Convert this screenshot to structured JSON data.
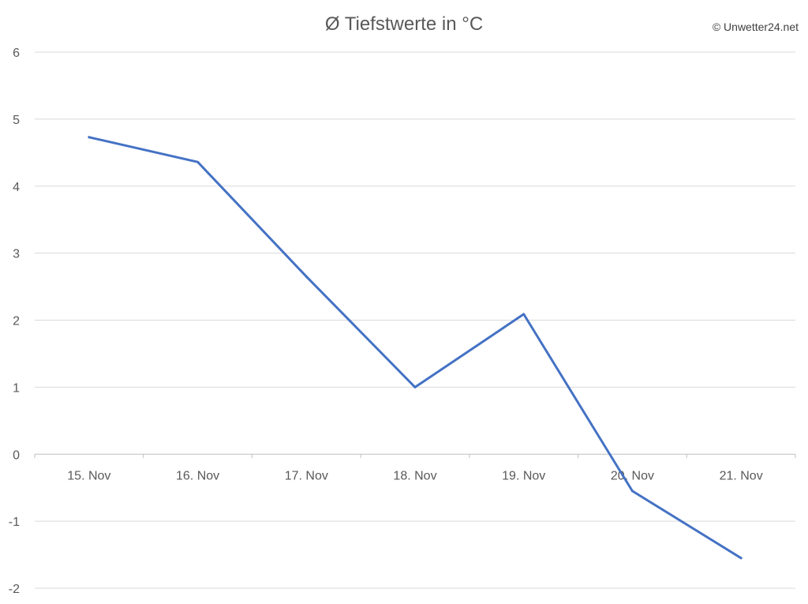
{
  "credit": "© Unwetter24.net",
  "colors": {
    "series": "#4472c4"
  },
  "chart_data": {
    "type": "line",
    "title": "Ø Tiefstwerte in °C",
    "xlabel": "",
    "ylabel": "",
    "categories": [
      "15. Nov",
      "16. Nov",
      "17. Nov",
      "18. Nov",
      "19. Nov",
      "20. Nov",
      "21. Nov"
    ],
    "series": [
      {
        "values": [
          4.73,
          4.36,
          2.65,
          1.0,
          2.09,
          -0.55,
          -1.55
        ]
      }
    ],
    "ylim": [
      -2,
      6
    ],
    "yticks": [
      "6",
      "5",
      "4",
      "3",
      "2",
      "1",
      "0",
      "-1",
      "-2"
    ],
    "grid": true,
    "legend": "none"
  }
}
